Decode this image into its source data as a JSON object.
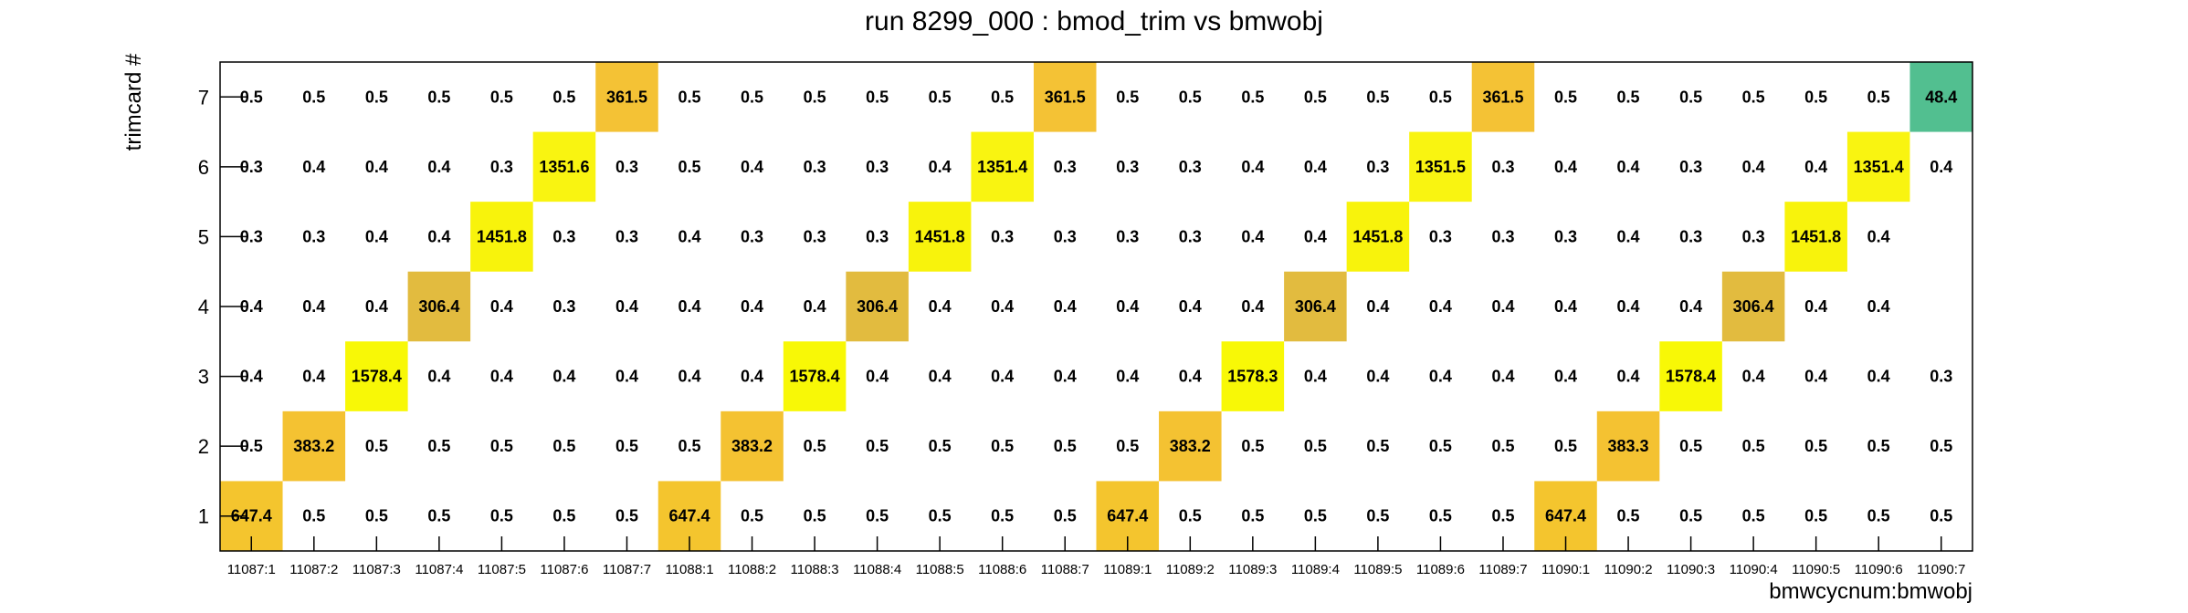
{
  "chart_data": {
    "type": "heatmap",
    "title": "run 8299_000 : bmod_trim vs bmwobj",
    "xlabel": "bmwcycnum:bmwobj",
    "ylabel": "trimcard #",
    "categories": [
      "11087:1",
      "11087:2",
      "11087:3",
      "11087:4",
      "11087:5",
      "11087:6",
      "11087:7",
      "11088:1",
      "11088:2",
      "11088:3",
      "11088:4",
      "11088:5",
      "11088:6",
      "11088:7",
      "11089:1",
      "11089:2",
      "11089:3",
      "11089:4",
      "11089:5",
      "11089:6",
      "11089:7",
      "11090:1",
      "11090:2",
      "11090:3",
      "11090:4",
      "11090:5",
      "11090:6",
      "11090:7"
    ],
    "y_categories": [
      "1",
      "2",
      "3",
      "4",
      "5",
      "6",
      "7"
    ],
    "rows": {
      "1": [
        "647.4",
        "0.5",
        "0.5",
        "0.5",
        "0.5",
        "0.5",
        "0.5",
        "647.4",
        "0.5",
        "0.5",
        "0.5",
        "0.5",
        "0.5",
        "0.5",
        "647.4",
        "0.5",
        "0.5",
        "0.5",
        "0.5",
        "0.5",
        "0.5",
        "647.4",
        "0.5",
        "0.5",
        "0.5",
        "0.5",
        "0.5",
        "0.5"
      ],
      "2": [
        "0.5",
        "383.2",
        "0.5",
        "0.5",
        "0.5",
        "0.5",
        "0.5",
        "0.5",
        "383.2",
        "0.5",
        "0.5",
        "0.5",
        "0.5",
        "0.5",
        "0.5",
        "383.2",
        "0.5",
        "0.5",
        "0.5",
        "0.5",
        "0.5",
        "0.5",
        "383.3",
        "0.5",
        "0.5",
        "0.5",
        "0.5",
        "0.5"
      ],
      "3": [
        "0.4",
        "0.4",
        "1578.4",
        "0.4",
        "0.4",
        "0.4",
        "0.4",
        "0.4",
        "0.4",
        "1578.4",
        "0.4",
        "0.4",
        "0.4",
        "0.4",
        "0.4",
        "0.4",
        "1578.3",
        "0.4",
        "0.4",
        "0.4",
        "0.4",
        "0.4",
        "0.4",
        "1578.4",
        "0.4",
        "0.4",
        "0.4",
        "0.3"
      ],
      "4": [
        "0.4",
        "0.4",
        "0.4",
        "306.4",
        "0.4",
        "0.3",
        "0.4",
        "0.4",
        "0.4",
        "0.4",
        "306.4",
        "0.4",
        "0.4",
        "0.4",
        "0.4",
        "0.4",
        "0.4",
        "306.4",
        "0.4",
        "0.4",
        "0.4",
        "0.4",
        "0.4",
        "0.4",
        "306.4",
        "0.4",
        "0.4",
        ""
      ],
      "5": [
        "0.3",
        "0.3",
        "0.4",
        "0.4",
        "1451.8",
        "0.3",
        "0.3",
        "0.4",
        "0.3",
        "0.3",
        "0.3",
        "1451.8",
        "0.3",
        "0.3",
        "0.3",
        "0.3",
        "0.4",
        "0.4",
        "1451.8",
        "0.3",
        "0.3",
        "0.3",
        "0.4",
        "0.3",
        "0.3",
        "1451.8",
        "0.4",
        ""
      ],
      "6": [
        "0.3",
        "0.4",
        "0.4",
        "0.4",
        "0.3",
        "1351.6",
        "0.3",
        "0.5",
        "0.4",
        "0.3",
        "0.3",
        "0.4",
        "1351.4",
        "0.3",
        "0.3",
        "0.3",
        "0.4",
        "0.4",
        "0.3",
        "1351.5",
        "0.3",
        "0.4",
        "0.4",
        "0.3",
        "0.4",
        "0.4",
        "1351.4",
        "0.4"
      ],
      "7": [
        "0.5",
        "0.5",
        "0.5",
        "0.5",
        "0.5",
        "0.5",
        "361.5",
        "0.5",
        "0.5",
        "0.5",
        "0.5",
        "0.5",
        "0.5",
        "361.5",
        "0.5",
        "0.5",
        "0.5",
        "0.5",
        "0.5",
        "0.5",
        "361.5",
        "0.5",
        "0.5",
        "0.5",
        "0.5",
        "0.5",
        "0.5",
        "48.4"
      ]
    },
    "colors": {
      "1578.4": "#f8f806",
      "1578.3": "#f8f806",
      "1451.8": "#f8f30c",
      "1351.6": "#f9f411",
      "1351.5": "#f9f411",
      "1351.4": "#f9f411",
      "647.4": "#f4c52e",
      "383.2": "#f4c232",
      "383.3": "#f4c232",
      "361.5": "#f4c235",
      "306.4": "#e2bb3f",
      "48.4": "#52bf90"
    },
    "grid": false
  }
}
